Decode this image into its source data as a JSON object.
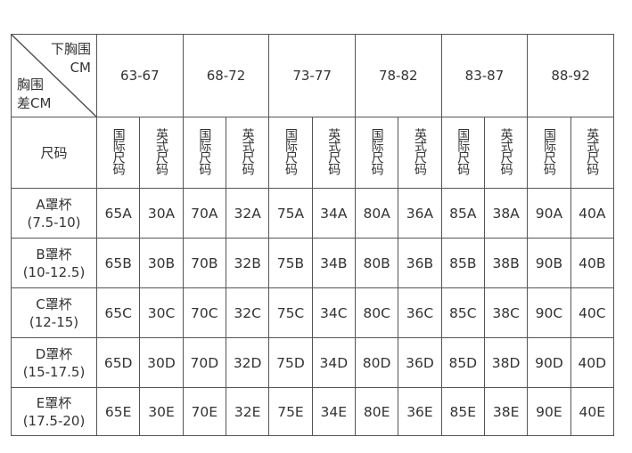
{
  "corner": {
    "top_line1": "下胸围",
    "top_line2": "CM",
    "bottom_line1": "胸围",
    "bottom_line2": "差CM"
  },
  "underbust_ranges": [
    "63-67",
    "68-72",
    "73-77",
    "78-82",
    "83-87",
    "88-92"
  ],
  "size_label": "尺码",
  "subheaders": [
    "国际尺码",
    "英式尺码"
  ],
  "rows": [
    {
      "cup": "A罩杯",
      "range": "(7.5-10)",
      "values": [
        "65A",
        "30A",
        "70A",
        "32A",
        "75A",
        "34A",
        "80A",
        "36A",
        "85A",
        "38A",
        "90A",
        "40A"
      ]
    },
    {
      "cup": "B罩杯",
      "range": "(10-12.5)",
      "values": [
        "65B",
        "30B",
        "70B",
        "32B",
        "75B",
        "34B",
        "80B",
        "36B",
        "85B",
        "38B",
        "90B",
        "40B"
      ]
    },
    {
      "cup": "C罩杯",
      "range": "(12-15)",
      "values": [
        "65C",
        "30C",
        "70C",
        "32C",
        "75C",
        "34C",
        "80C",
        "36C",
        "85C",
        "38C",
        "90C",
        "40C"
      ]
    },
    {
      "cup": "D罩杯",
      "range": "(15-17.5)",
      "values": [
        "65D",
        "30D",
        "70D",
        "32D",
        "75D",
        "34D",
        "80D",
        "36D",
        "85D",
        "38D",
        "90D",
        "40D"
      ]
    },
    {
      "cup": "E罩杯",
      "range": "(17.5-20)",
      "values": [
        "65E",
        "30E",
        "70E",
        "32E",
        "75E",
        "34E",
        "80E",
        "36E",
        "85E",
        "38E",
        "90E",
        "40E"
      ]
    }
  ],
  "colors": {
    "border": "#555555",
    "text": "#333333"
  }
}
